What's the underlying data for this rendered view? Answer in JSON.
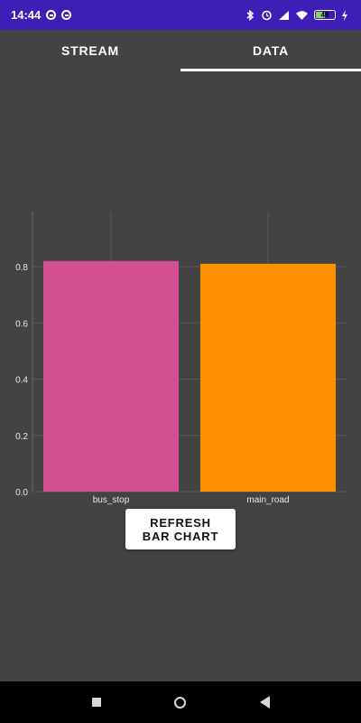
{
  "status_bar": {
    "time": "14:44",
    "left_icons": [
      "notification-icon",
      "notification-icon"
    ],
    "right_icons": [
      "bluetooth-icon",
      "alarm-icon",
      "signal-icon",
      "wifi-icon",
      "battery-icon",
      "charging-icon"
    ],
    "battery_level": 0.46
  },
  "tabs": [
    {
      "label": "STREAM",
      "active": false
    },
    {
      "label": "DATA",
      "active": true
    }
  ],
  "colors": {
    "status_bar": "#3d1fb8",
    "background": "#434343",
    "bus_stop_bar": "#d44f91",
    "main_road_bar": "#ff9100"
  },
  "chart_data": {
    "type": "bar",
    "categories": [
      "bus_stop",
      "main_road"
    ],
    "values": [
      0.82,
      0.81
    ],
    "colors": [
      "#d44f91",
      "#ff9100"
    ],
    "y_ticks": [
      "0.0",
      "0.2",
      "0.4",
      "0.6",
      "0.8"
    ],
    "ylim": [
      0,
      1.0
    ],
    "grid": true,
    "legend": "none"
  },
  "refresh_button": {
    "line1": "REFRESH",
    "line2": "BAR CHART"
  },
  "nav_bar": {
    "buttons": [
      "recents-icon",
      "home-icon",
      "back-icon"
    ]
  }
}
